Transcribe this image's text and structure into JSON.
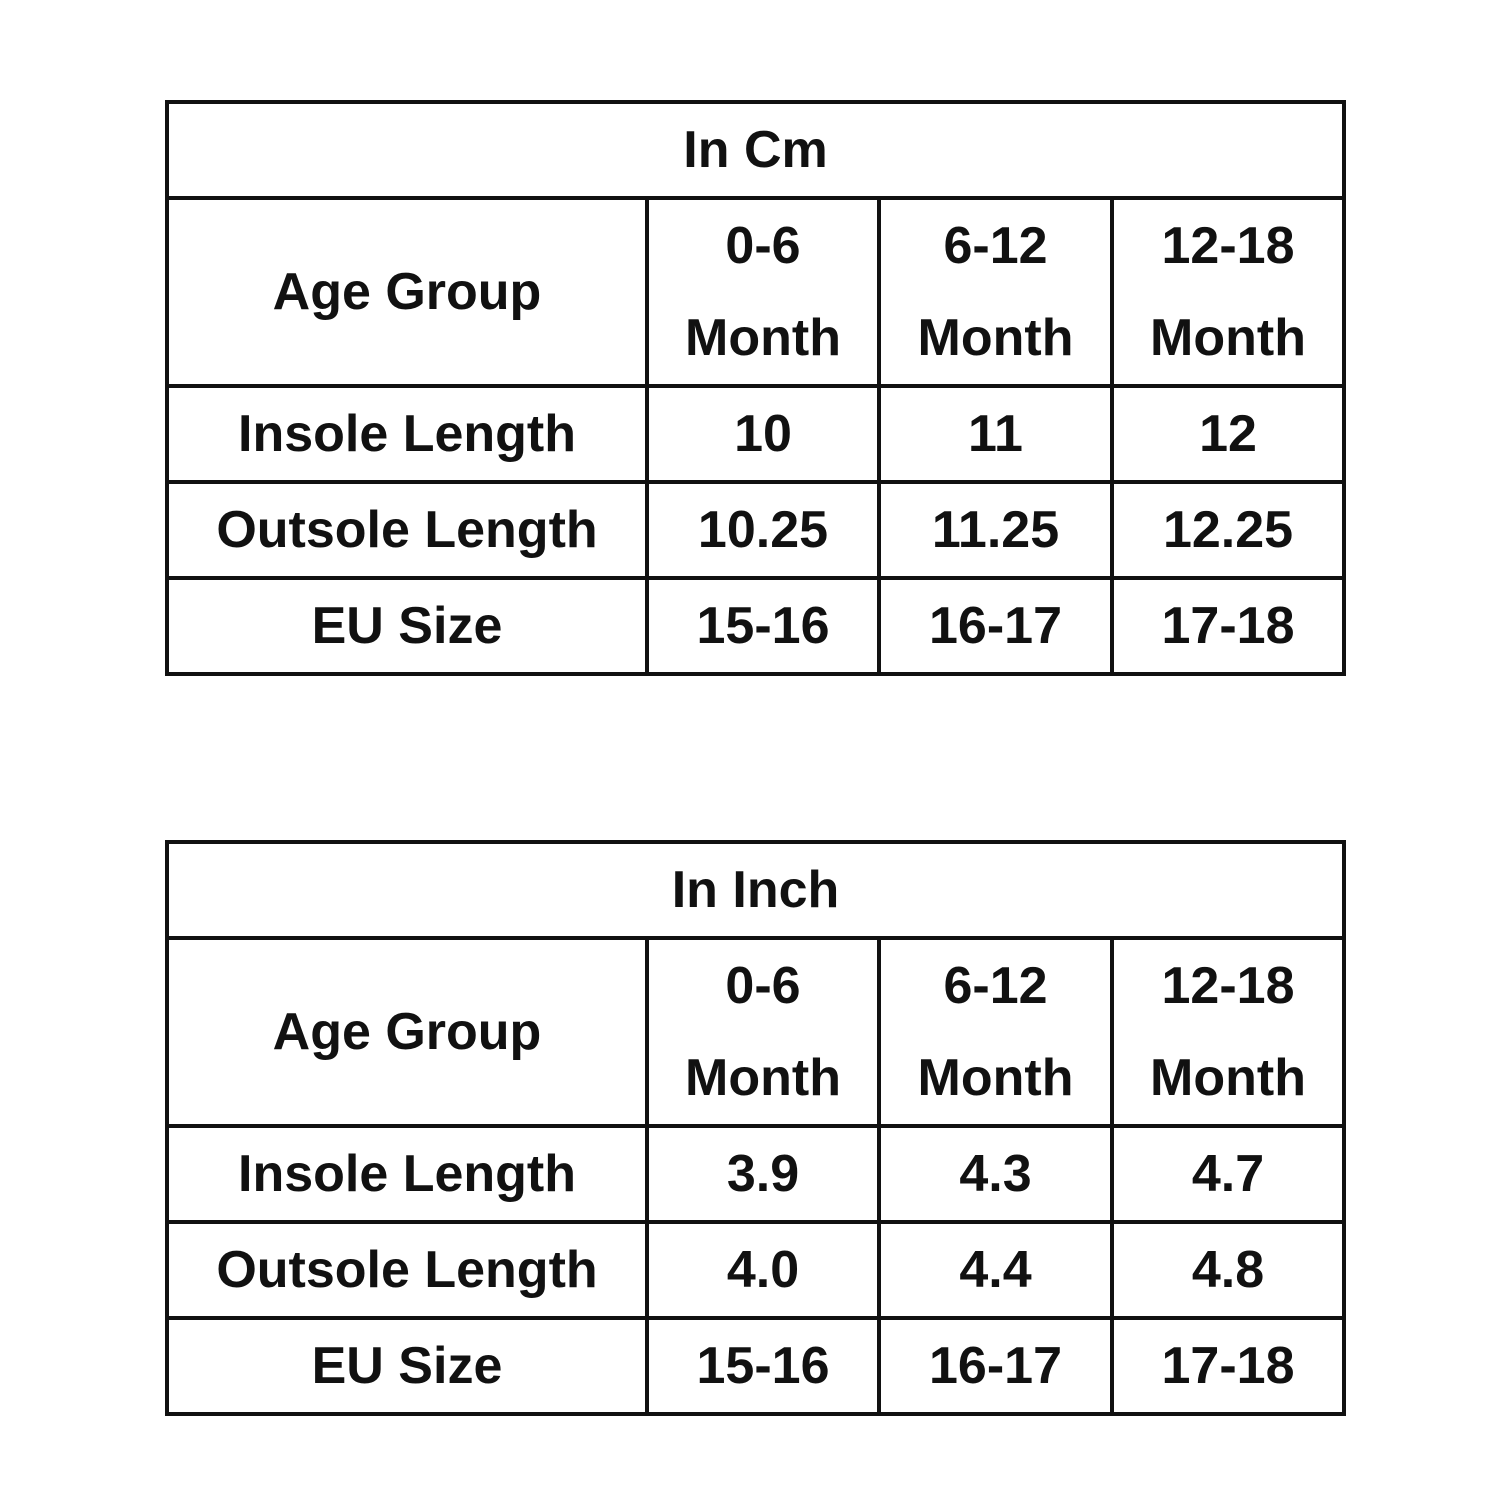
{
  "tables": [
    {
      "title": "In Cm",
      "header": {
        "label": "Age Group",
        "columns": [
          "0-6 Month",
          "6-12 Month",
          "12-18 Month"
        ]
      },
      "rows": [
        {
          "label": "Insole Length",
          "cells": [
            "10",
            "11",
            "12"
          ]
        },
        {
          "label": "Outsole Length",
          "cells": [
            "10.25",
            "11.25",
            "12.25"
          ]
        },
        {
          "label": "EU Size",
          "cells": [
            "15-16",
            "16-17",
            "17-18"
          ]
        }
      ]
    },
    {
      "title": "In Inch",
      "header": {
        "label": "Age Group",
        "columns": [
          "0-6 Month",
          "6-12 Month",
          "12-18 Month"
        ]
      },
      "rows": [
        {
          "label": "Insole Length",
          "cells": [
            "3.9",
            "4.3",
            "4.7"
          ]
        },
        {
          "label": "Outsole Length",
          "cells": [
            "4.0",
            "4.4",
            "4.8"
          ]
        },
        {
          "label": "EU Size",
          "cells": [
            "15-16",
            "16-17",
            "17-18"
          ]
        }
      ]
    }
  ]
}
